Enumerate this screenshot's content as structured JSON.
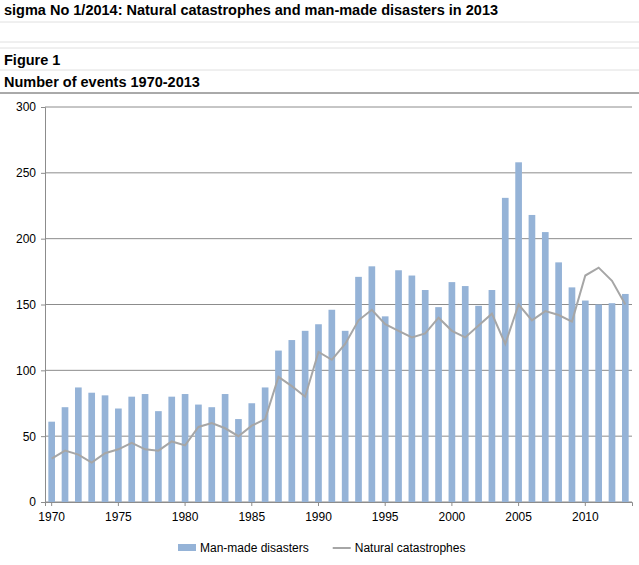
{
  "chart_data": {
    "type": "bar",
    "title": "sigma No 1/2014: Natural catastrophes and man-made disasters in 2013",
    "figure_label": "Figure 1",
    "subtitle": "Number of events 1970-2013",
    "categories": [
      "1970",
      null,
      null,
      null,
      null,
      "1975",
      null,
      null,
      null,
      null,
      "1980",
      null,
      null,
      null,
      null,
      "1985",
      null,
      null,
      null,
      null,
      "1990",
      null,
      null,
      null,
      null,
      "1995",
      null,
      null,
      null,
      null,
      "2000",
      null,
      null,
      null,
      null,
      "2005",
      null,
      null,
      null,
      null,
      "2010",
      null,
      null,
      null
    ],
    "series": [
      {
        "name": "Man-made disasters",
        "type": "bar",
        "color": "#95b3d7",
        "values": [
          61,
          72,
          87,
          83,
          81,
          71,
          80,
          82,
          69,
          80,
          82,
          74,
          72,
          82,
          63,
          75,
          87,
          115,
          123,
          130,
          135,
          146,
          130,
          171,
          179,
          141,
          176,
          172,
          161,
          148,
          167,
          164,
          149,
          161,
          231,
          258,
          218,
          205,
          182,
          163,
          153,
          150,
          151,
          158
        ]
      },
      {
        "name": "Natural catastrophes",
        "type": "line",
        "color": "#a6a6a6",
        "values": [
          33,
          39,
          36,
          30,
          37,
          40,
          45,
          40,
          39,
          46,
          43,
          57,
          60,
          56,
          50,
          58,
          63,
          95,
          88,
          80,
          114,
          108,
          120,
          138,
          146,
          135,
          130,
          125,
          128,
          140,
          130,
          125,
          134,
          143,
          120,
          150,
          138,
          145,
          142,
          137,
          172,
          178,
          168,
          150
        ]
      }
    ],
    "ylim": [
      0,
      300
    ],
    "yticks": [
      0,
      50,
      100,
      150,
      200,
      250,
      300
    ],
    "grid": true,
    "legend": "bottom"
  }
}
